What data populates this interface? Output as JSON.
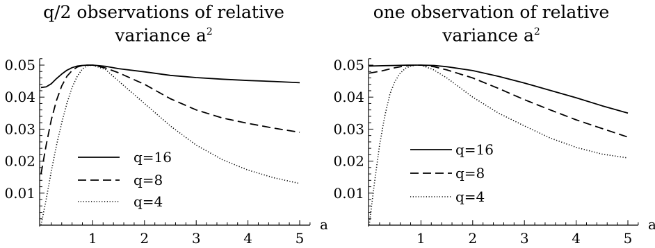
{
  "chart_data": [
    {
      "type": "line",
      "title": "q/2 observations of relative",
      "title_line2": "variance a",
      "title_sup": "2",
      "xlabel": "a",
      "ylabel": "",
      "xlim": [
        0,
        5.2
      ],
      "ylim": [
        0,
        0.052
      ],
      "xticks": [
        1,
        2,
        3,
        4,
        5
      ],
      "yticks": [
        0.01,
        0.02,
        0.03,
        0.04,
        0.05
      ],
      "xtick_labels": [
        "1",
        "2",
        "3",
        "4",
        "5"
      ],
      "ytick_labels": [
        "0.01",
        "0.02",
        "0.03",
        "0.04",
        "0.05"
      ],
      "grid": false,
      "legend_position": "bottom-left",
      "series": [
        {
          "name": "q=16",
          "style": "solid",
          "x": [
            0,
            0.1,
            0.2,
            0.3,
            0.4,
            0.5,
            0.6,
            0.7,
            0.8,
            0.9,
            1.0,
            1.25,
            1.5,
            2.0,
            2.5,
            3.0,
            3.5,
            4.0,
            4.5,
            5.0
          ],
          "y": [
            0.043,
            0.0432,
            0.0442,
            0.0458,
            0.0472,
            0.0484,
            0.0492,
            0.0497,
            0.0499,
            0.05,
            0.05,
            0.0496,
            0.0489,
            0.0479,
            0.0468,
            0.0461,
            0.0456,
            0.0452,
            0.0449,
            0.0445
          ]
        },
        {
          "name": "q=8",
          "style": "dashed",
          "x": [
            0,
            0.1,
            0.2,
            0.3,
            0.4,
            0.5,
            0.6,
            0.7,
            0.8,
            0.9,
            1.0,
            1.25,
            1.5,
            2.0,
            2.5,
            3.0,
            3.5,
            4.0,
            4.5,
            5.0
          ],
          "y": [
            0.016,
            0.025,
            0.033,
            0.039,
            0.0435,
            0.0465,
            0.0483,
            0.0494,
            0.0499,
            0.05,
            0.05,
            0.0491,
            0.0476,
            0.044,
            0.0395,
            0.036,
            0.0335,
            0.0318,
            0.0303,
            0.029
          ]
        },
        {
          "name": "q=4",
          "style": "dotted",
          "x": [
            0,
            0.1,
            0.2,
            0.3,
            0.4,
            0.5,
            0.6,
            0.7,
            0.8,
            0.9,
            1.0,
            1.25,
            1.5,
            2.0,
            2.5,
            3.0,
            3.5,
            4.0,
            4.5,
            5.0
          ],
          "y": [
            0.0,
            0.008,
            0.017,
            0.025,
            0.032,
            0.038,
            0.043,
            0.0465,
            0.0488,
            0.0498,
            0.05,
            0.0486,
            0.045,
            0.038,
            0.031,
            0.025,
            0.0205,
            0.0172,
            0.0148,
            0.013
          ]
        }
      ]
    },
    {
      "type": "line",
      "title": "one observation of relative",
      "title_line2": "variance a",
      "title_sup": "2",
      "xlabel": "a",
      "ylabel": "",
      "xlim": [
        0,
        5.2
      ],
      "ylim": [
        0,
        0.052
      ],
      "xticks": [
        1,
        2,
        3,
        4,
        5
      ],
      "yticks": [
        0.01,
        0.02,
        0.03,
        0.04,
        0.05
      ],
      "xtick_labels": [
        "1",
        "2",
        "3",
        "4",
        "5"
      ],
      "ytick_labels": [
        "0.01",
        "0.02",
        "0.03",
        "0.04",
        "0.05"
      ],
      "grid": false,
      "legend_position": "bottom-left",
      "series": [
        {
          "name": "q=16",
          "style": "solid",
          "x": [
            0,
            0.25,
            0.5,
            0.75,
            1.0,
            1.25,
            1.5,
            2.0,
            2.5,
            3.0,
            3.5,
            4.0,
            4.5,
            5.0
          ],
          "y": [
            0.0497,
            0.0498,
            0.0499,
            0.05,
            0.05,
            0.0499,
            0.0495,
            0.0483,
            0.0465,
            0.0444,
            0.0421,
            0.0398,
            0.0373,
            0.035
          ]
        },
        {
          "name": "q=8",
          "style": "dashed",
          "x": [
            0,
            0.25,
            0.5,
            0.75,
            1.0,
            1.25,
            1.5,
            2.0,
            2.5,
            3.0,
            3.5,
            4.0,
            4.5,
            5.0
          ],
          "y": [
            0.0475,
            0.0482,
            0.0492,
            0.0499,
            0.05,
            0.0495,
            0.0485,
            0.046,
            0.0427,
            0.0392,
            0.036,
            0.0329,
            0.0302,
            0.0275
          ]
        },
        {
          "name": "q=4",
          "style": "dotted",
          "x": [
            0,
            0.1,
            0.2,
            0.3,
            0.4,
            0.5,
            0.6,
            0.7,
            0.8,
            0.9,
            1.0,
            1.25,
            1.5,
            2.0,
            2.5,
            3.0,
            3.5,
            4.0,
            4.5,
            5.0
          ],
          "y": [
            0.0,
            0.013,
            0.025,
            0.034,
            0.041,
            0.045,
            0.0475,
            0.049,
            0.0497,
            0.05,
            0.05,
            0.0485,
            0.046,
            0.04,
            0.035,
            0.031,
            0.0272,
            0.0243,
            0.0222,
            0.021
          ]
        }
      ]
    }
  ]
}
